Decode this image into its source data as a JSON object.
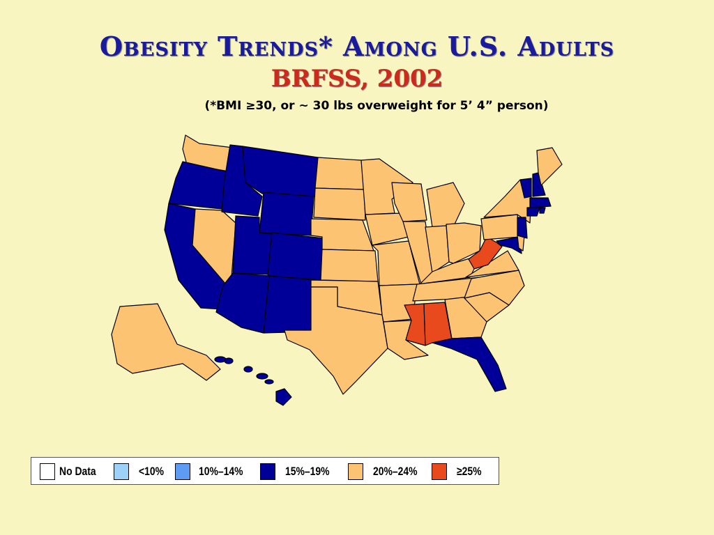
{
  "title": "Obesity Trends* Among U.S. Adults",
  "subtitle": "BRFSS, 2002",
  "note": "(*BMI ≥30, or ~ 30 lbs overweight for 5’ 4” person)",
  "legend": [
    {
      "label": "No Data",
      "color": "#ffffff"
    },
    {
      "label": "<10%",
      "color": "#9dd1f7"
    },
    {
      "label": "10%–14%",
      "color": "#5d9cf2"
    },
    {
      "label": "15%–19%",
      "color": "#000099"
    },
    {
      "label": "20%–24%",
      "color": "#fcc472"
    },
    {
      "label": "≥25%",
      "color": "#e84a1e"
    }
  ],
  "map": {
    "colors": {
      "c15_19": "#000099",
      "c20_24": "#fcc472",
      "c25": "#e84a1e"
    },
    "states_15_19": [
      "Oregon",
      "California",
      "Idaho",
      "Montana",
      "Wyoming",
      "Utah",
      "Colorado",
      "Arizona",
      "New Mexico",
      "Florida",
      "Hawaii",
      "New Jersey",
      "Maryland",
      "Vermont",
      "New Hampshire",
      "Massachusetts",
      "Connecticut",
      "Rhode Island"
    ],
    "states_20_24": [
      "Washington",
      "Nevada",
      "Alaska",
      "North Dakota",
      "South Dakota",
      "Nebraska",
      "Kansas",
      "Oklahoma",
      "Texas",
      "Minnesota",
      "Iowa",
      "Missouri",
      "Arkansas",
      "Louisiana",
      "Wisconsin",
      "Illinois",
      "Michigan",
      "Indiana",
      "Ohio",
      "Kentucky",
      "Tennessee",
      "Georgia",
      "South Carolina",
      "North Carolina",
      "Virginia",
      "Pennsylvania",
      "New York",
      "Maine",
      "Delaware"
    ],
    "states_25_plus": [
      "Mississippi",
      "Alabama",
      "West Virginia"
    ]
  }
}
